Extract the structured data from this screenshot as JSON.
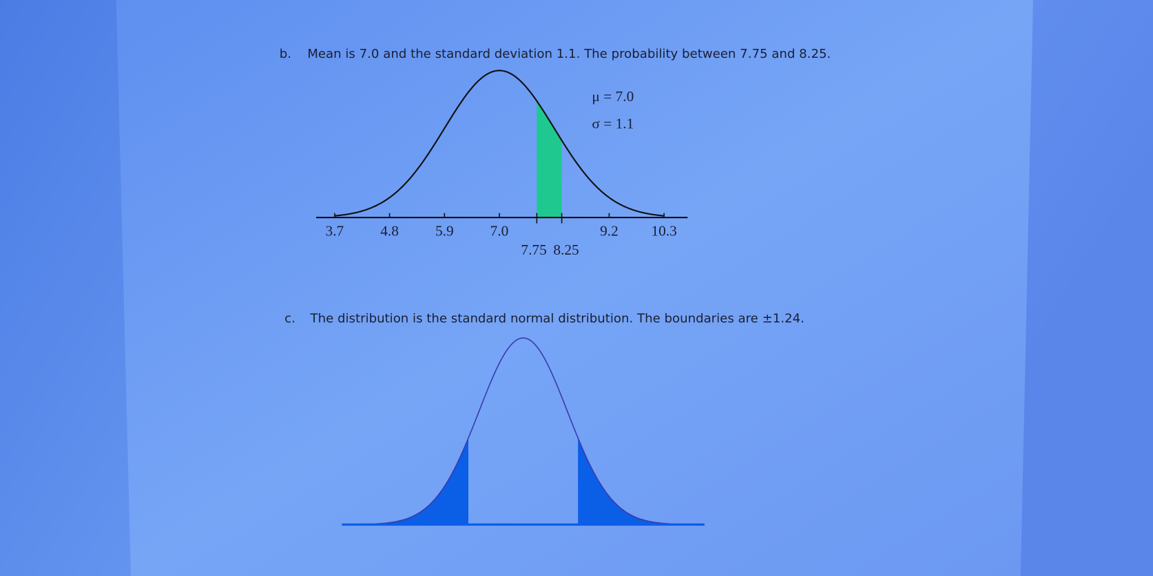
{
  "sections": [
    {
      "label": "b.",
      "text": "Mean is 7.0 and the standard deviation 1.1. The probability between 7.75 and 8.25.",
      "figure": {
        "mu": 7,
        "sigma": 1.1,
        "annotations": [
          "μ = 7.0",
          "σ = 1.1"
        ],
        "xlim": [
          3.33,
          10.77
        ],
        "shade": [
          7.75,
          8.25
        ],
        "xticks": [
          3.7,
          4.8,
          5.9,
          {
            "value": 7,
            "label": "7.0"
          },
          7.75,
          8.25,
          9.2,
          10.3
        ]
      }
    },
    {
      "label": "c.",
      "text": "The distribution is the standard normal distribution. The boundaries are ±1.24.",
      "figure": {
        "mu": 0,
        "sigma": 1,
        "xlim": [
          -4.1,
          4.1
        ],
        "boundaries": [
          -1.24,
          1.24
        ]
      }
    }
  ]
}
